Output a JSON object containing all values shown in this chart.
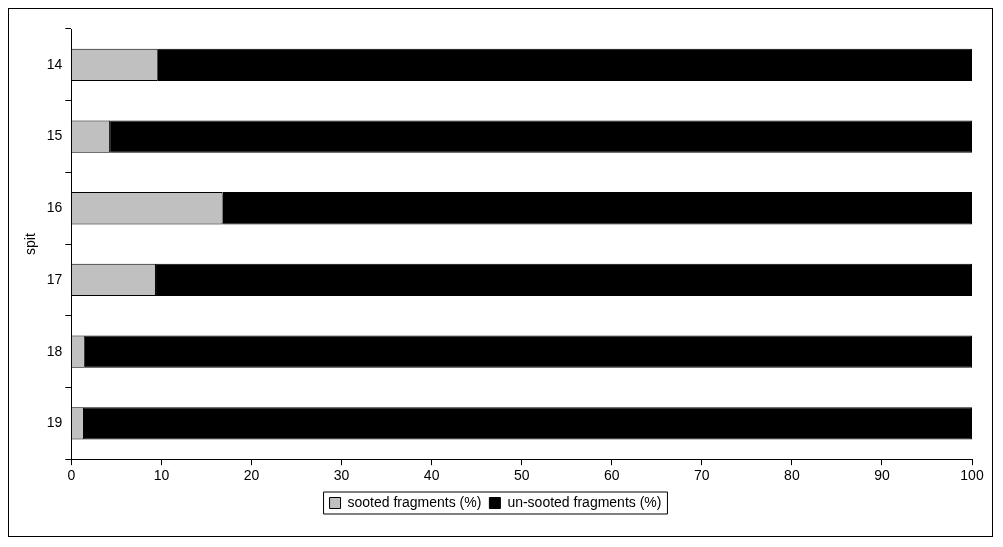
{
  "chart_data": {
    "type": "bar",
    "orientation": "horizontal",
    "stacked": true,
    "ylabel": "spit",
    "categories": [
      "14",
      "15",
      "16",
      "17",
      "18",
      "19"
    ],
    "series": [
      {
        "name": "sooted fragments (%)",
        "color": "#c0c0c0",
        "values": [
          9.6,
          4.3,
          16.8,
          9.4,
          1.5,
          1.4
        ]
      },
      {
        "name": "un-sooted fragments (%)",
        "color": "#000000",
        "values": [
          90.4,
          95.7,
          83.2,
          90.6,
          98.5,
          98.6
        ]
      }
    ],
    "xlim": [
      0,
      100
    ],
    "xticks": [
      0,
      10,
      20,
      30,
      40,
      50,
      60,
      70,
      80,
      90,
      100
    ],
    "grid": false,
    "legend": "bottom"
  }
}
